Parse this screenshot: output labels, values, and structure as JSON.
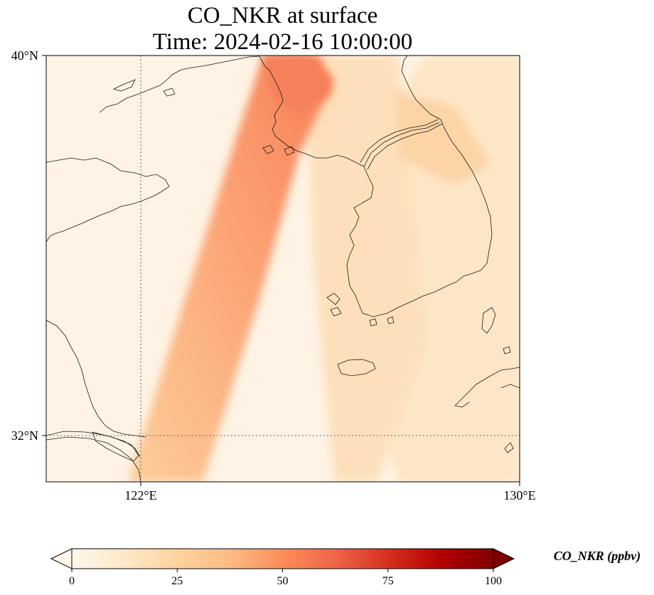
{
  "title": {
    "line1": "CO_NKR at surface",
    "line2": "Time: 2024-02-16 10:00:00"
  },
  "axes": {
    "lat_ticks": [
      {
        "value": 40,
        "label": "40°N"
      },
      {
        "value": 32,
        "label": "32°N"
      }
    ],
    "lon_ticks": [
      {
        "value": 122,
        "label": "122°E"
      },
      {
        "value": 130,
        "label": "130°E"
      }
    ],
    "extent": {
      "lon_min": 120,
      "lon_max": 130,
      "lat_min": 31,
      "lat_max": 40
    },
    "gridlines": "dotted at 122°E and 32°N"
  },
  "colorbar": {
    "title": "CO_NKR (ppbv)",
    "min": 0,
    "max": 100,
    "extend": "both",
    "colormap": "OrRd",
    "ticks": [
      {
        "value": 0,
        "label": "0"
      },
      {
        "value": 25,
        "label": "25"
      },
      {
        "value": 50,
        "label": "50"
      },
      {
        "value": 75,
        "label": "75"
      },
      {
        "value": 100,
        "label": "100"
      }
    ],
    "colors": {
      "min": "#fff7ec",
      "low": "#fdd49e",
      "mid": "#fc8d59",
      "high": "#d7301f",
      "max": "#7f0000"
    }
  }
}
